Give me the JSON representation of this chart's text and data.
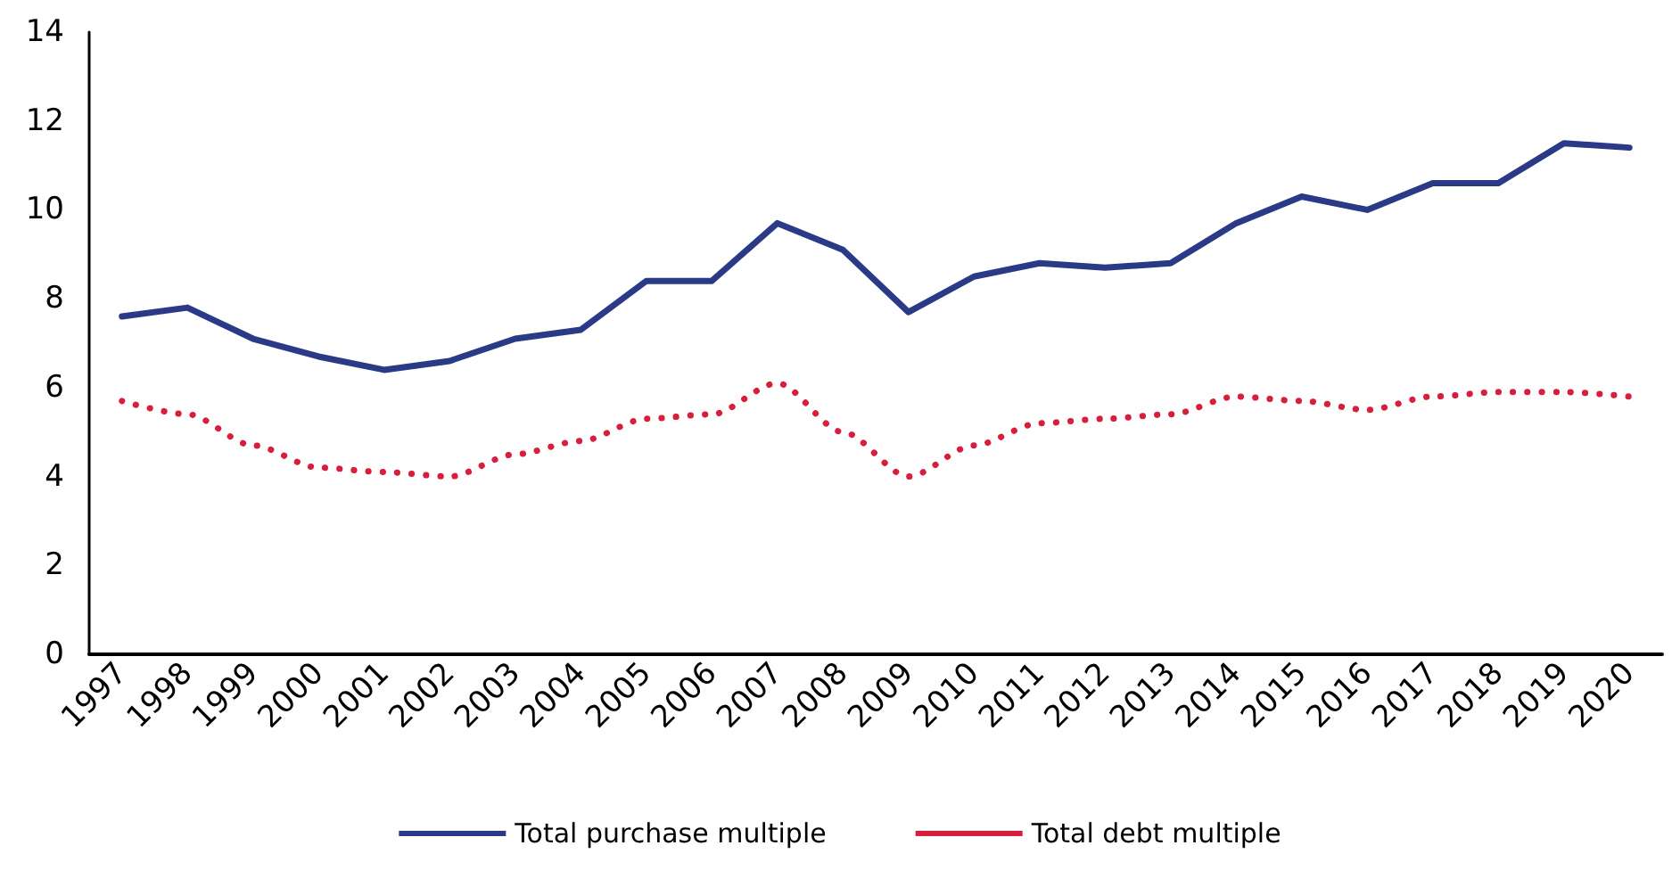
{
  "chart_data": {
    "type": "line",
    "categories": [
      "1997",
      "1998",
      "1999",
      "2000",
      "2001",
      "2002",
      "2003",
      "2004",
      "2005",
      "2006",
      "2007",
      "2008",
      "2009",
      "2010",
      "2011",
      "2012",
      "2013",
      "2014",
      "2015",
      "2016",
      "2017",
      "2018",
      "2019",
      "2020"
    ],
    "series": [
      {
        "name": "Total purchase multiple",
        "color": "#2b3a87",
        "line_style": "solid",
        "values": [
          7.6,
          7.8,
          7.1,
          6.7,
          6.4,
          6.6,
          7.1,
          7.3,
          8.4,
          8.4,
          9.7,
          9.1,
          7.7,
          8.5,
          8.8,
          8.7,
          8.8,
          9.7,
          10.3,
          10.0,
          10.6,
          10.6,
          11.5,
          11.4
        ]
      },
      {
        "name": "Total debt multiple",
        "color": "#d81e3c",
        "line_style": "dotted",
        "values": [
          5.7,
          5.4,
          4.7,
          4.2,
          4.1,
          4.0,
          4.5,
          4.8,
          5.3,
          5.4,
          6.1,
          5.0,
          4.0,
          4.7,
          5.2,
          5.3,
          5.4,
          5.8,
          5.7,
          5.5,
          5.8,
          5.9,
          5.9,
          5.8
        ]
      }
    ],
    "ylim": [
      0,
      14
    ],
    "yticks": [
      0,
      2,
      4,
      6,
      8,
      10,
      12,
      14
    ],
    "grid": false,
    "legend": "bottom",
    "marker": "none"
  }
}
